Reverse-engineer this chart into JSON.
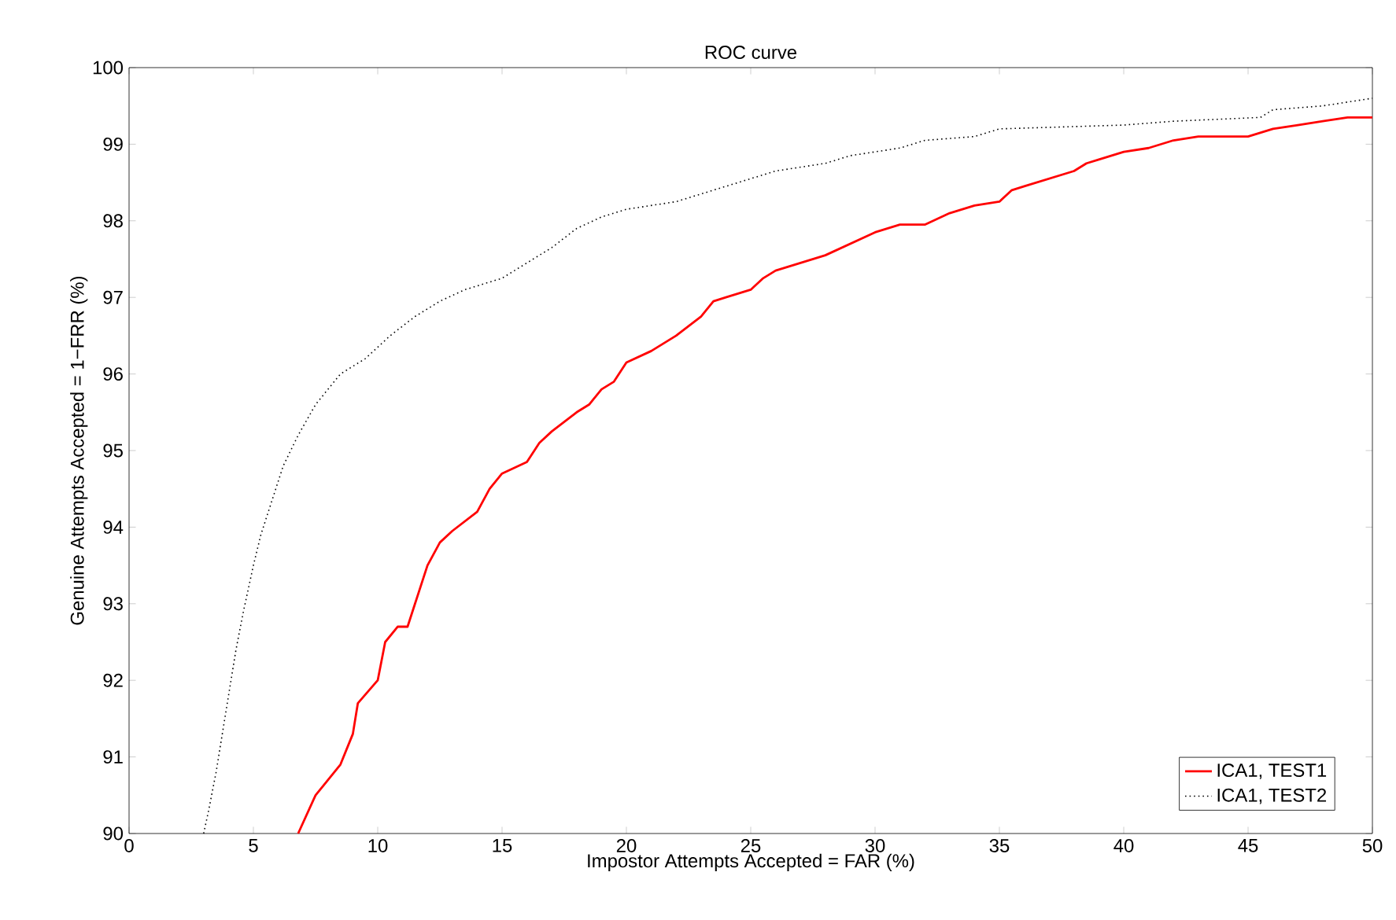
{
  "chart_data": {
    "type": "line",
    "title": "ROC curve",
    "xlabel": "Impostor Attempts Accepted = FAR (%)",
    "ylabel": "Genuine Attempts Accepted = 1−FRR (%)",
    "xlim": [
      0,
      50
    ],
    "ylim": [
      90,
      100
    ],
    "xticks": [
      0,
      5,
      10,
      15,
      20,
      25,
      30,
      35,
      40,
      45,
      50
    ],
    "yticks": [
      90,
      91,
      92,
      93,
      94,
      95,
      96,
      97,
      98,
      99,
      100
    ],
    "grid": false,
    "legend": "bottom right",
    "series": [
      {
        "name": "ICA1, TEST1",
        "color": "#ff0000",
        "line_style": "solid",
        "x": [
          6.8,
          7.5,
          8,
          8.5,
          9,
          9.2,
          10,
          10.3,
          10.8,
          11.2,
          11.5,
          12,
          12.5,
          13,
          14,
          14.5,
          15,
          16,
          16.5,
          17,
          18,
          18.5,
          19,
          19.5,
          20,
          21,
          21.5,
          22,
          23,
          23.5,
          24,
          25,
          25.5,
          26,
          27,
          28,
          29,
          30,
          31,
          32,
          33,
          34,
          35,
          35.5,
          36,
          37,
          38,
          38.5,
          39,
          40,
          41,
          42,
          43,
          45,
          46,
          47,
          48,
          49,
          50
        ],
        "values": [
          90,
          90.5,
          90.7,
          90.9,
          91.3,
          91.7,
          92,
          92.5,
          92.7,
          92.7,
          93,
          93.5,
          93.8,
          93.95,
          94.2,
          94.5,
          94.7,
          94.85,
          95.1,
          95.25,
          95.5,
          95.6,
          95.8,
          95.9,
          96.15,
          96.3,
          96.4,
          96.5,
          96.75,
          96.95,
          97,
          97.1,
          97.25,
          97.35,
          97.45,
          97.55,
          97.7,
          97.85,
          97.95,
          97.95,
          98.1,
          98.2,
          98.25,
          98.4,
          98.45,
          98.55,
          98.65,
          98.75,
          98.8,
          98.9,
          98.95,
          99.05,
          99.1,
          99.1,
          99.2,
          99.25,
          99.3,
          99.35,
          99.35
        ]
      },
      {
        "name": "ICA1, TEST2",
        "color": "#000000",
        "line_style": "dotted",
        "x": [
          3,
          3.2,
          3.5,
          3.8,
          4,
          4.3,
          4.6,
          5,
          5.3,
          5.7,
          6.2,
          6.8,
          7.5,
          8.5,
          9.5,
          10.5,
          11.5,
          12.5,
          13.5,
          15,
          16,
          17,
          18,
          19,
          20,
          22,
          23,
          24,
          25,
          26,
          28,
          29,
          31,
          32,
          34,
          35,
          37,
          40,
          42,
          45.5,
          46,
          48,
          49,
          50
        ],
        "values": [
          90,
          90.3,
          90.8,
          91.4,
          91.8,
          92.4,
          92.9,
          93.5,
          93.9,
          94.3,
          94.8,
          95.2,
          95.6,
          96,
          96.2,
          96.5,
          96.75,
          96.95,
          97.1,
          97.25,
          97.45,
          97.65,
          97.9,
          98.05,
          98.15,
          98.25,
          98.35,
          98.45,
          98.55,
          98.65,
          98.75,
          98.85,
          98.95,
          99.05,
          99.1,
          99.2,
          99.22,
          99.25,
          99.3,
          99.35,
          99.45,
          99.5,
          99.55,
          99.6
        ]
      }
    ]
  }
}
